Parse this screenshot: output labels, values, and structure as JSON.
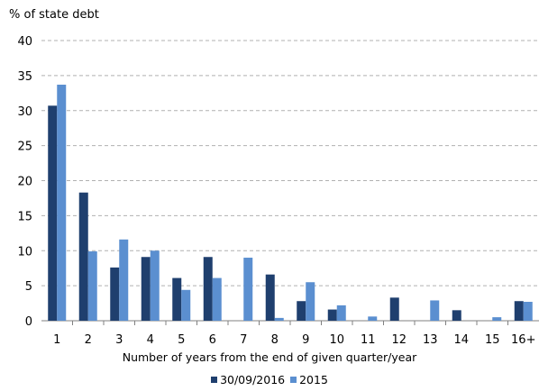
{
  "chart_data": {
    "type": "bar",
    "ylabel": "% of state debt",
    "xlabel": "Number of years from the end of given quarter/year",
    "categories": [
      "1",
      "2",
      "3",
      "4",
      "5",
      "6",
      "7",
      "8",
      "9",
      "10",
      "11",
      "12",
      "13",
      "14",
      "15",
      "16+"
    ],
    "series": [
      {
        "name": "30/09/2016",
        "color": "#1f3f6e",
        "values": [
          30.7,
          18.3,
          7.6,
          9.1,
          6.1,
          9.1,
          0,
          6.6,
          2.8,
          1.6,
          0,
          3.3,
          0,
          1.5,
          0,
          2.8
        ]
      },
      {
        "name": "2015",
        "color": "#5b8fd0",
        "values": [
          33.7,
          9.9,
          11.6,
          10.0,
          4.4,
          6.1,
          9.0,
          0.4,
          5.5,
          2.2,
          0.6,
          0,
          2.9,
          0,
          0.5,
          2.7
        ]
      }
    ],
    "ylim": [
      0,
      40
    ],
    "yticks": [
      0,
      5,
      10,
      15,
      20,
      25,
      30,
      35,
      40
    ],
    "grid": true,
    "legend": "bottom"
  }
}
